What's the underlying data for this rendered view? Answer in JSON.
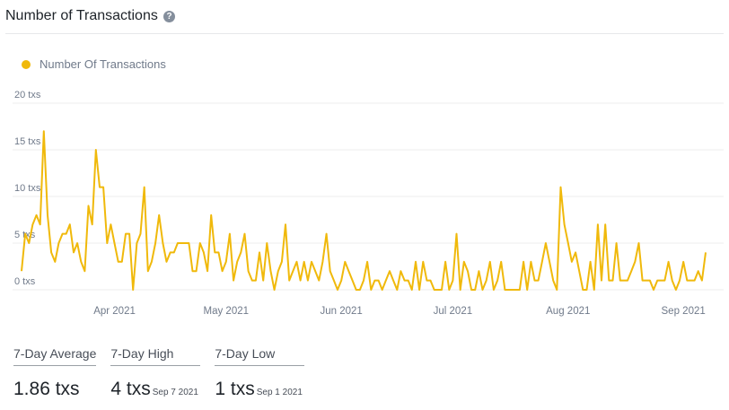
{
  "header": {
    "title": "Number of Transactions",
    "help_icon": "question-circle-icon"
  },
  "colors": {
    "series": "#f0b90b",
    "grid": "#eeeeee",
    "axis_text": "#707a8a"
  },
  "chart_data": {
    "type": "line",
    "legend": [
      "Number Of Transactions"
    ],
    "ylabel": "",
    "xlabel": "",
    "ylim": [
      0,
      20
    ],
    "yticks": [
      {
        "value": 0,
        "label": "0 txs"
      },
      {
        "value": 5,
        "label": "5 txs"
      },
      {
        "value": 10,
        "label": "10 txs"
      },
      {
        "value": 15,
        "label": "15 txs"
      },
      {
        "value": 20,
        "label": "20 txs"
      }
    ],
    "x_start": "2021-03-07",
    "x_end": "2021-09-07",
    "xticks": [
      {
        "date": "2021-04-01",
        "label": "Apr 2021"
      },
      {
        "date": "2021-05-01",
        "label": "May 2021"
      },
      {
        "date": "2021-06-01",
        "label": "Jun 2021"
      },
      {
        "date": "2021-07-01",
        "label": "Jul 2021"
      },
      {
        "date": "2021-08-01",
        "label": "Aug 2021"
      },
      {
        "date": "2021-09-01",
        "label": "Sep 2021"
      }
    ],
    "grid": true,
    "series": [
      {
        "name": "Number Of Transactions",
        "values": [
          2,
          6,
          5,
          7,
          8,
          7,
          17,
          8,
          4,
          3,
          5,
          6,
          6,
          7,
          4,
          5,
          3,
          2,
          9,
          7,
          15,
          11,
          11,
          5,
          7,
          5,
          3,
          3,
          6,
          6,
          0,
          5,
          6,
          11,
          2,
          3,
          5,
          8,
          5,
          3,
          4,
          4,
          5,
          5,
          5,
          5,
          2,
          2,
          5,
          4,
          2,
          8,
          4,
          4,
          2,
          3,
          6,
          1,
          3,
          4,
          6,
          2,
          1,
          1,
          4,
          1,
          5,
          2,
          0,
          2,
          3,
          7,
          1,
          2,
          3,
          1,
          3,
          1,
          3,
          2,
          1,
          3,
          6,
          2,
          1,
          0,
          1,
          3,
          2,
          1,
          0,
          0,
          1,
          3,
          0,
          1,
          1,
          0,
          1,
          2,
          1,
          0,
          2,
          1,
          1,
          0,
          3,
          0,
          3,
          1,
          1,
          0,
          0,
          0,
          3,
          0,
          1,
          6,
          0,
          3,
          2,
          0,
          0,
          2,
          0,
          1,
          3,
          0,
          1,
          3,
          0,
          0,
          0,
          0,
          0,
          3,
          0,
          3,
          1,
          1,
          3,
          5,
          3,
          1,
          0,
          11,
          7,
          5,
          3,
          4,
          2,
          0,
          0,
          3,
          0,
          7,
          1,
          7,
          1,
          1,
          5,
          1,
          1,
          1,
          2,
          3,
          5,
          1,
          1,
          1,
          0,
          1,
          1,
          1,
          3,
          1,
          0,
          1,
          3,
          1,
          1,
          1,
          2,
          1,
          4
        ]
      }
    ]
  },
  "stats": [
    {
      "label": "7-Day Average",
      "value": "1.86 txs",
      "date": ""
    },
    {
      "label": "7-Day High",
      "value": "4 txs",
      "date": "Sep 7 2021"
    },
    {
      "label": "7-Day Low",
      "value": "1 txs",
      "date": "Sep 1 2021"
    }
  ]
}
